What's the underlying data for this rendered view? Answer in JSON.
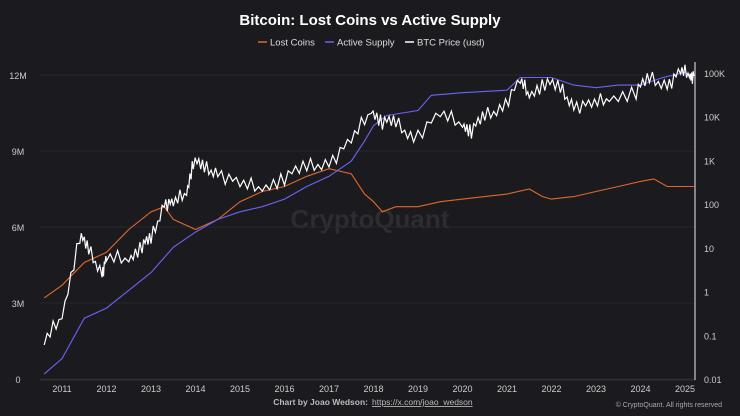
{
  "chart_data": {
    "type": "line",
    "title": "Bitcoin: Lost Coins vs Active Supply",
    "watermark": "CryptoQuant",
    "credit": "Chart by Joao Wedson:",
    "credit_link": "https://x.com/joao_wedson",
    "copyright": "© CryptoQuant. All rights reserved",
    "legend_position": "top-center",
    "grid": true,
    "x_ticks": [
      "2011",
      "2012",
      "2013",
      "2014",
      "2015",
      "2016",
      "2017",
      "2018",
      "2019",
      "2020",
      "2021",
      "2022",
      "2023",
      "2024",
      "2025"
    ],
    "y_left": {
      "ticks": [
        "0",
        "3M",
        "6M",
        "9M",
        "12M"
      ],
      "range": [
        0,
        12000000
      ]
    },
    "y_right": {
      "scale": "log",
      "ticks": [
        "0.01",
        "0.1",
        "1",
        "10",
        "100",
        "1K",
        "10K",
        "100K"
      ],
      "range": [
        0.01,
        100000
      ]
    },
    "series": [
      {
        "name": "Lost Coins",
        "color": "#e0672a",
        "axis": "left",
        "x": [
          2010.6,
          2011,
          2011.5,
          2012,
          2012.5,
          2013,
          2013.3,
          2013.5,
          2014,
          2014.5,
          2015,
          2015.5,
          2016,
          2016.5,
          2017,
          2017.5,
          2017.8,
          2018,
          2018.2,
          2018.5,
          2019,
          2019.5,
          2020,
          2020.5,
          2021,
          2021.5,
          2021.8,
          2022,
          2022.5,
          2023,
          2023.5,
          2024,
          2024.3,
          2024.6,
          2025,
          2025.2
        ],
        "values": [
          3.2,
          3.7,
          4.6,
          5.0,
          5.9,
          6.6,
          6.8,
          6.3,
          5.9,
          6.3,
          7.0,
          7.4,
          7.6,
          8.0,
          8.3,
          8.1,
          7.3,
          7.0,
          6.6,
          6.8,
          6.8,
          7.0,
          7.1,
          7.2,
          7.3,
          7.5,
          7.2,
          7.1,
          7.2,
          7.4,
          7.6,
          7.8,
          7.9,
          7.6,
          7.6,
          7.6
        ],
        "unit": "M"
      },
      {
        "name": "Active Supply",
        "color": "#6b63f5",
        "axis": "left",
        "x": [
          2010.6,
          2011,
          2011.5,
          2012,
          2012.5,
          2013,
          2013.5,
          2014,
          2014.5,
          2015,
          2015.5,
          2016,
          2016.5,
          2017,
          2017.5,
          2017.8,
          2018,
          2018.3,
          2019,
          2019.3,
          2020,
          2021,
          2021.3,
          2022,
          2022.5,
          2023,
          2023.5,
          2024,
          2024.5,
          2025,
          2025.2
        ],
        "values": [
          0.2,
          0.8,
          2.4,
          2.8,
          3.5,
          4.2,
          5.2,
          5.8,
          6.3,
          6.6,
          6.8,
          7.1,
          7.6,
          8.0,
          8.6,
          9.4,
          10.0,
          10.4,
          10.6,
          11.2,
          11.3,
          11.4,
          11.9,
          11.9,
          11.6,
          11.5,
          11.6,
          11.6,
          11.9,
          12.1,
          11.9
        ],
        "unit": "M"
      },
      {
        "name": "BTC Price (usd)",
        "color": "#ffffff",
        "axis": "right",
        "x": [
          2010.6,
          2011,
          2011.4,
          2011.6,
          2011.9,
          2012,
          2012.5,
          2012.8,
          2013,
          2013.3,
          2013.5,
          2013.8,
          2013.95,
          2014.2,
          2014.5,
          2015,
          2015.5,
          2016,
          2016.5,
          2017,
          2017.5,
          2017.95,
          2018.2,
          2018.5,
          2018.9,
          2019.5,
          2020,
          2020.2,
          2020.5,
          2020.9,
          2021.3,
          2021.5,
          2021.85,
          2022.2,
          2022.5,
          2022.9,
          2023.3,
          2023.9,
          2024.2,
          2024.6,
          2024.9,
          2025.1,
          2025.2
        ],
        "values": [
          0.06,
          0.3,
          20,
          8,
          3,
          5,
          6,
          12,
          14,
          120,
          90,
          200,
          1000,
          600,
          600,
          250,
          250,
          430,
          650,
          1000,
          2500,
          15000,
          8000,
          6500,
          3700,
          10000,
          7200,
          5000,
          9200,
          19000,
          58000,
          34000,
          63000,
          40000,
          20000,
          16500,
          28000,
          40000,
          68000,
          60000,
          95000,
          100000,
          85000
        ]
      }
    ]
  }
}
